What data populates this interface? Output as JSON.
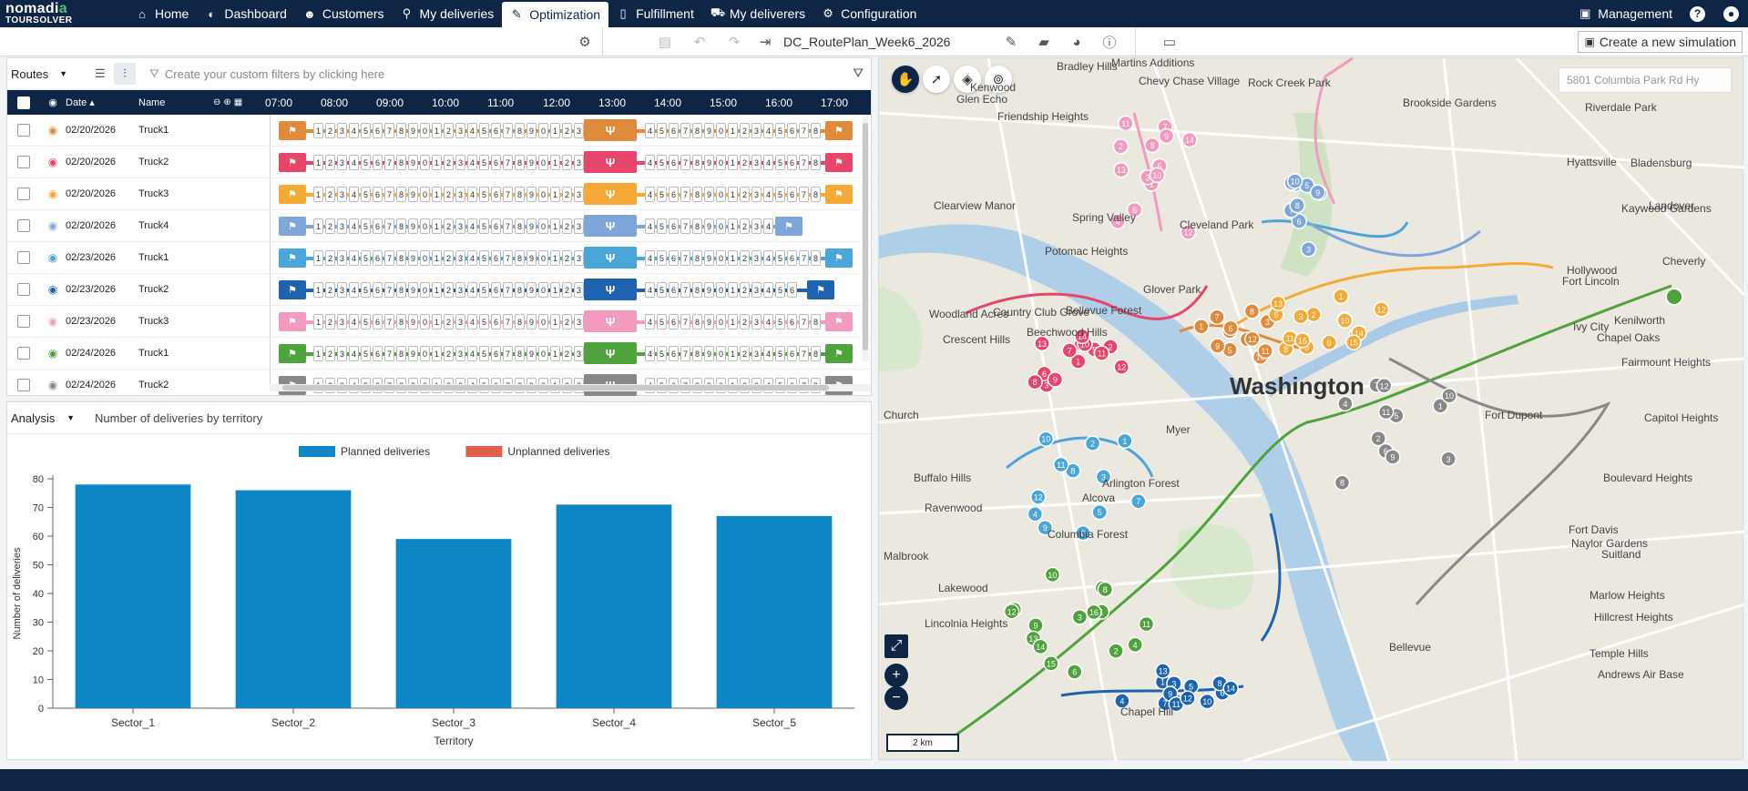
{
  "app": {
    "logo_line1": "nomadia",
    "logo_line2": "TOURSOLVER"
  },
  "nav": {
    "items": [
      {
        "label": "Home",
        "icon": "home-icon"
      },
      {
        "label": "Dashboard",
        "icon": "dashboard-icon"
      },
      {
        "label": "Customers",
        "icon": "customers-icon"
      },
      {
        "label": "My deliveries",
        "icon": "map-pin-icon"
      },
      {
        "label": "Optimization",
        "icon": "magic-wand-icon",
        "active": true
      },
      {
        "label": "Fulfillment",
        "icon": "phone-icon"
      },
      {
        "label": "My deliverers",
        "icon": "car-icon"
      },
      {
        "label": "Configuration",
        "icon": "gear-icon"
      }
    ],
    "management_label": "Management",
    "help_label": "?",
    "user_label": "user"
  },
  "toolbar": {
    "simulation_name": "DC_RoutePlan_Week6_2026",
    "new_simulation_label": "Create a new simulation"
  },
  "routes": {
    "selector_label": "Routes",
    "filter_placeholder": "Create your custom filters by clicking here",
    "columns": {
      "date": "Date",
      "name": "Name"
    },
    "hours": [
      "07:00",
      "08:00",
      "09:00",
      "10:00",
      "11:00",
      "12:00",
      "13:00",
      "14:00",
      "15:00",
      "16:00",
      "17:00"
    ],
    "rows": [
      {
        "date": "02/20/2026",
        "name": "Truck1",
        "color": "#e08a3c"
      },
      {
        "date": "02/20/2026",
        "name": "Truck2",
        "color": "#e8456a"
      },
      {
        "date": "02/20/2026",
        "name": "Truck3",
        "color": "#f5a937"
      },
      {
        "date": "02/20/2026",
        "name": "Truck4",
        "color": "#7fa6d8"
      },
      {
        "date": "02/23/2026",
        "name": "Truck1",
        "color": "#4aa6d8"
      },
      {
        "date": "02/23/2026",
        "name": "Truck2",
        "color": "#1e63b0"
      },
      {
        "date": "02/23/2026",
        "name": "Truck3",
        "color": "#f39ac0"
      },
      {
        "date": "02/24/2026",
        "name": "Truck1",
        "color": "#4ea33c"
      },
      {
        "date": "02/24/2026",
        "name": "Truck2",
        "color": "#888888"
      }
    ]
  },
  "analysis": {
    "selector_label": "Analysis",
    "title": "Number of deliveries by territory"
  },
  "chart_data": {
    "type": "bar",
    "categories": [
      "Sector_1",
      "Sector_2",
      "Sector_3",
      "Sector_4",
      "Sector_5"
    ],
    "series": [
      {
        "name": "Planned deliveries",
        "values": [
          78,
          76,
          59,
          71,
          67
        ],
        "color": "#0d87c4"
      },
      {
        "name": "Unplanned deliveries",
        "values": [
          0,
          0,
          0,
          0,
          0
        ],
        "color": "#e05f4c"
      }
    ],
    "xlabel": "Territory",
    "ylabel": "Number of deliveries",
    "ylim": [
      0,
      80
    ],
    "yticks": [
      0,
      10,
      20,
      30,
      40,
      50,
      60,
      70,
      80
    ],
    "legend": "top-center"
  },
  "map": {
    "search_placeholder": "5801 Columbia Park Rd Hy",
    "scale_label": "2 km",
    "labels": [
      "Washington",
      "Martins Additions",
      "Bradley Hills",
      "Chevy Chase Village",
      "Rock Creek Park",
      "Kenwood",
      "Glen Echo",
      "Friendship Heights",
      "Brookside Gardens",
      "Riverdale Park",
      "Hyattsville",
      "Bladensburg",
      "Landover",
      "Cheverly",
      "Fairmount Heights",
      "Capitol Heights",
      "Suitland",
      "Andrews Air Base",
      "Church",
      "Myer",
      "Fort Dupont",
      "Boulevard Heights",
      "Hillcrest Heights",
      "Bellevue",
      "Marlow Heights",
      "Temple Hills",
      "Lakewood",
      "Ravenwood",
      "Malbrook",
      "Lincolnia Heights",
      "Chapel Hill",
      "Alcova",
      "Arlington Forest",
      "Columbia Forest",
      "Buffalo Hills",
      "Clearview Manor",
      "Woodland Acres",
      "Crescent Hills",
      "Country Club Grove",
      "Beechwood Hills",
      "Bellevue Forest",
      "Spring Valley",
      "Potomac Heights",
      "Glover Park",
      "Cleveland Park",
      "Kaywood Gardens",
      "Hollywood",
      "Fort Lincoln",
      "Chapel Oaks",
      "Kenilworth",
      "Ivy City",
      "Naylor Gardens",
      "Fort Davis"
    ]
  }
}
